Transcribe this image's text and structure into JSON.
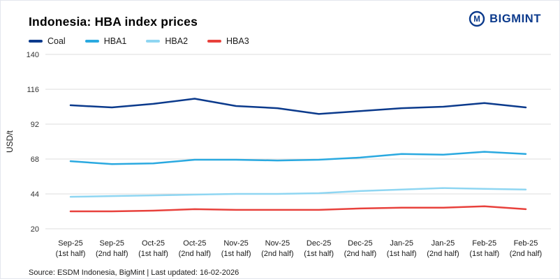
{
  "page": {
    "title": "Indonesia: HBA index prices",
    "brand": "BIGMINT",
    "brand_icon_letter": "M",
    "source": "Source: ESDM Indonesia, BigMint | Last updated: 16-02-2026"
  },
  "colors": {
    "brand": "#0b3a8c",
    "coal": "#0b3a8c",
    "hba1": "#2aa9e0",
    "hba2": "#8fd6f2",
    "hba3": "#e8413c",
    "grid": "#dcdcdc",
    "tick_text": "#333333"
  },
  "chart_data": {
    "type": "line",
    "title": "Indonesia: HBA index prices",
    "xlabel": "",
    "ylabel": "USD/t",
    "ylim": [
      20,
      140
    ],
    "yticks": [
      20,
      44,
      68,
      92,
      116,
      140
    ],
    "grid": true,
    "legend_position": "top-left",
    "categories": [
      [
        "Sep-25",
        "(1st half)"
      ],
      [
        "Sep-25",
        "(2nd half)"
      ],
      [
        "Oct-25",
        "(1st half)"
      ],
      [
        "Oct-25",
        "(2nd half)"
      ],
      [
        "Nov-25",
        "(1st half)"
      ],
      [
        "Nov-25",
        "(2nd half)"
      ],
      [
        "Dec-25",
        "(1st half)"
      ],
      [
        "Dec-25",
        "(2nd half)"
      ],
      [
        "Jan-25",
        "(1st half)"
      ],
      [
        "Jan-25",
        "(2nd half)"
      ],
      [
        "Feb-25",
        "(1st half)"
      ],
      [
        "Feb-25",
        "(2nd half)"
      ]
    ],
    "series": [
      {
        "name": "Coal",
        "color": "#0b3a8c",
        "values": [
          105,
          103.5,
          106,
          109.5,
          104.5,
          103,
          99,
          101,
          103,
          104,
          106.5,
          103.5
        ]
      },
      {
        "name": "HBA1",
        "color": "#2aa9e0",
        "values": [
          66.5,
          64.5,
          65,
          67.5,
          67.5,
          67,
          67.5,
          69,
          71.5,
          71,
          73,
          71.5
        ]
      },
      {
        "name": "HBA2",
        "color": "#8fd6f2",
        "values": [
          42,
          42.5,
          43,
          43.5,
          44,
          44,
          44.5,
          46,
          47,
          48,
          47.5,
          47
        ]
      },
      {
        "name": "HBA3",
        "color": "#e8413c",
        "values": [
          32,
          32,
          32.5,
          33.5,
          33,
          33,
          33,
          34,
          34.5,
          34.5,
          35.5,
          33.5
        ]
      }
    ]
  }
}
